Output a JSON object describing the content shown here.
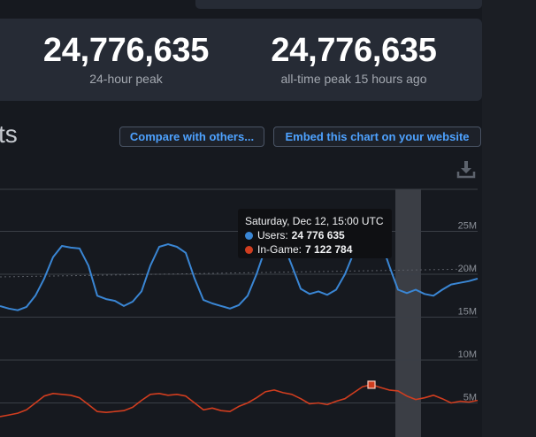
{
  "stats": {
    "peak_24h": {
      "value": "24,776,635",
      "label": "24-hour peak"
    },
    "peak_all_time": {
      "value": "24,776,635",
      "label": "all-time peak 15 hours ago"
    }
  },
  "section": {
    "title": "ts"
  },
  "buttons": {
    "compare": "Compare with others...",
    "embed": "Embed this chart on your website"
  },
  "icons": {
    "download": "download-icon"
  },
  "colors": {
    "users": "#3a86d4",
    "in_game": "#d03d1f",
    "highlight": "#3b3e45",
    "grid": "#3a3e46"
  },
  "tooltip": {
    "date": "Saturday, Dec 12, 15:00 UTC",
    "users_label": "Users:",
    "users_value": "24 776 635",
    "ingame_label": "In-Game:",
    "ingame_value": "7 122 784"
  },
  "chart_data": {
    "type": "line",
    "yticks": [
      "25M",
      "20M",
      "15M",
      "10M",
      "5M"
    ],
    "ylim": [
      0,
      30
    ],
    "x": [
      0,
      1,
      2,
      3,
      4,
      5,
      6,
      7,
      8,
      9,
      10,
      11,
      12,
      13,
      14,
      15,
      16,
      17,
      18,
      19,
      20,
      21,
      22,
      23,
      24,
      25,
      26,
      27,
      28,
      29,
      30,
      31,
      32,
      33,
      34,
      35,
      36,
      37,
      38,
      39,
      40,
      41,
      42,
      43,
      44,
      45,
      46,
      47,
      48,
      49,
      50,
      51,
      52,
      53,
      54
    ],
    "series": [
      {
        "name": "Users",
        "values": [
          16.3,
          16.0,
          15.8,
          16.2,
          17.5,
          19.5,
          22.0,
          23.3,
          23.1,
          23.0,
          21.0,
          17.5,
          17.1,
          16.9,
          16.3,
          16.8,
          18.0,
          21.0,
          23.2,
          23.5,
          23.2,
          22.5,
          19.5,
          17.0,
          16.6,
          16.3,
          16.0,
          16.4,
          17.5,
          20.0,
          23.0,
          24.0,
          23.6,
          21.0,
          18.3,
          17.7,
          18.0,
          17.6,
          18.2,
          20.0,
          22.5,
          24.3,
          24.78,
          24.0,
          21.0,
          18.2,
          17.8,
          18.2,
          17.7,
          17.5,
          18.2,
          18.8,
          19.0,
          19.2,
          19.5
        ]
      },
      {
        "name": "In-Game",
        "values": [
          3.4,
          3.6,
          3.8,
          4.2,
          5.0,
          5.8,
          6.1,
          6.0,
          5.9,
          5.6,
          4.8,
          4.0,
          3.9,
          4.0,
          4.1,
          4.5,
          5.3,
          6.0,
          6.1,
          5.9,
          6.0,
          5.8,
          5.0,
          4.2,
          4.4,
          4.1,
          4.0,
          4.6,
          5.0,
          5.6,
          6.3,
          6.5,
          6.2,
          6.0,
          5.5,
          4.9,
          5.0,
          4.8,
          5.2,
          5.5,
          6.2,
          6.9,
          7.12,
          6.8,
          6.5,
          6.4,
          5.8,
          5.4,
          5.6,
          5.9,
          5.5,
          5.0,
          5.2,
          5.1,
          5.3
        ]
      }
    ],
    "highlight_index": 42
  }
}
